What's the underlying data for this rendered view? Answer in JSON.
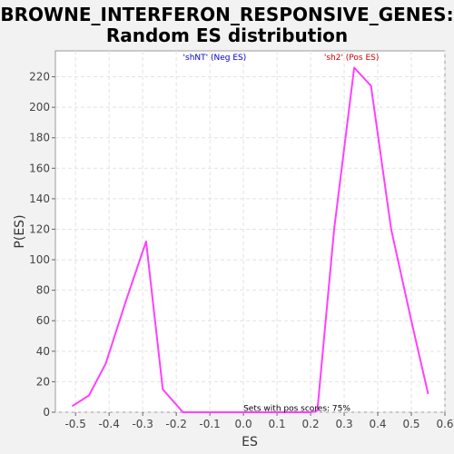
{
  "chart_data": {
    "type": "line",
    "title_lines": [
      "BROWNE_INTERFERON_RESPONSIVE_GENES:",
      "Random ES distribution"
    ],
    "xlabel": "ES",
    "ylabel": "P(ES)",
    "xlim": [
      -0.56,
      0.6
    ],
    "ylim": [
      0,
      237
    ],
    "xticks": [
      -0.5,
      -0.4,
      -0.3,
      -0.2,
      -0.1,
      0.0,
      0.1,
      0.2,
      0.3,
      0.4,
      0.5,
      0.6
    ],
    "xtick_labels": [
      "-0.5",
      "-0.4",
      "-0.3",
      "-0.2",
      "-0.1",
      "0.0",
      "0.1",
      "0.2",
      "0.3",
      "0.4",
      "0.5",
      "0.6"
    ],
    "yticks": [
      0,
      20,
      40,
      60,
      80,
      100,
      120,
      140,
      160,
      180,
      200,
      220
    ],
    "ytick_labels": [
      "0",
      "20",
      "40",
      "60",
      "80",
      "100",
      "120",
      "140",
      "160",
      "180",
      "200",
      "220"
    ],
    "grid": true,
    "series": [
      {
        "color": "#ff40ff",
        "x": [
          -0.51,
          -0.46,
          -0.41,
          -0.35,
          -0.29,
          -0.24,
          -0.18,
          -0.13,
          -0.07,
          -0.02,
          0.04,
          0.09,
          0.15,
          0.2,
          0.22,
          0.27,
          0.33,
          0.38,
          0.44,
          0.5,
          0.55
        ],
        "y": [
          4,
          11,
          32,
          73,
          112,
          15,
          0,
          0,
          0,
          0,
          0,
          0,
          0,
          0,
          1,
          120,
          226,
          214,
          120,
          60,
          12
        ]
      }
    ],
    "annotations": [
      {
        "text": "'shNT' (Neg ES)",
        "color": "#0000cc",
        "x": -0.18,
        "y": 231
      },
      {
        "text": "'sh2' (Pos ES)",
        "color": "#cc0000",
        "x": 0.24,
        "y": 231
      },
      {
        "text": "Sets with pos scores: 75%",
        "color": "#000000",
        "x": 0.0,
        "y": 1
      }
    ]
  }
}
